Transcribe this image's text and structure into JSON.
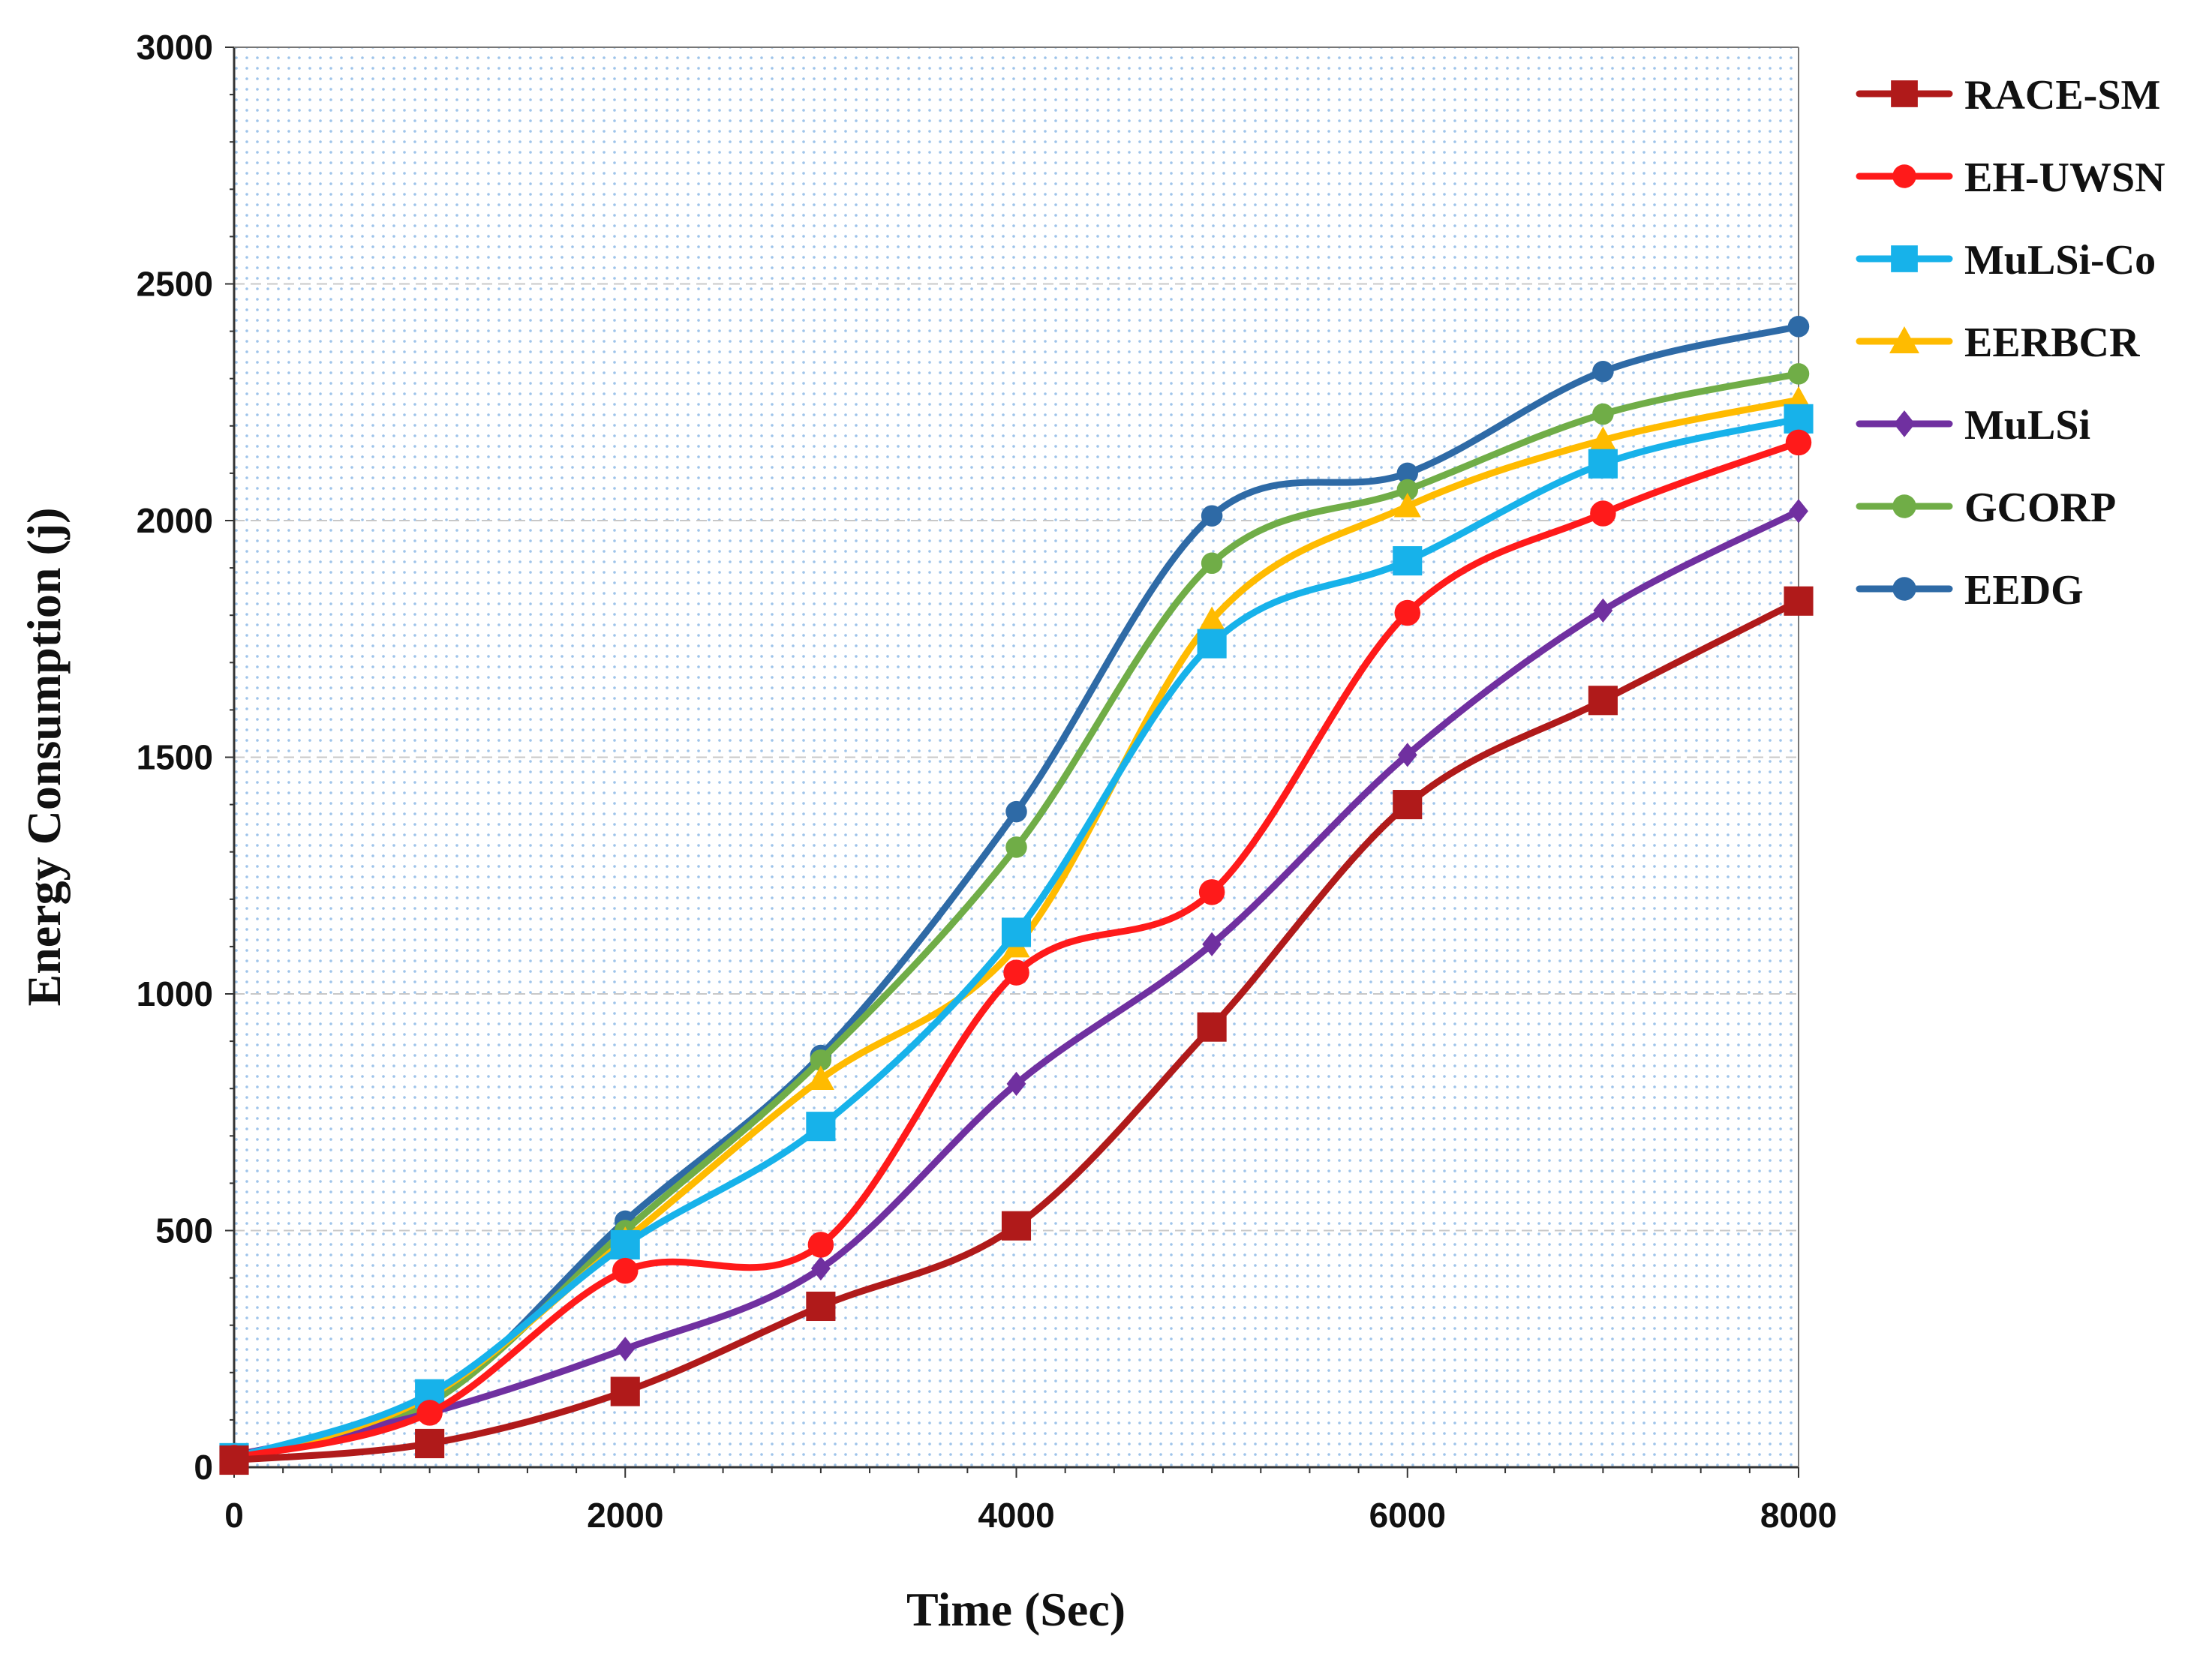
{
  "chart_data": {
    "type": "line",
    "title": "",
    "xlabel": "Time (Sec)",
    "ylabel": "Energy Consumption (j)",
    "xlim": [
      0,
      8000
    ],
    "ylim": [
      0,
      3000
    ],
    "x_ticks": [
      0,
      2000,
      4000,
      6000,
      8000
    ],
    "y_ticks": [
      0,
      500,
      1000,
      1500,
      2000,
      2500,
      3000
    ],
    "x": [
      0,
      1000,
      2000,
      3000,
      4000,
      5000,
      6000,
      7000,
      8000
    ],
    "grid": true,
    "legend_position": "right",
    "series": [
      {
        "name": "RACE-SM",
        "color": "#b01a1a",
        "marker": "square",
        "values": [
          15,
          50,
          160,
          340,
          510,
          930,
          1400,
          1620,
          1830
        ]
      },
      {
        "name": "EH-UWSN",
        "color": "#ff1a1a",
        "marker": "circle",
        "values": [
          20,
          115,
          415,
          470,
          1045,
          1215,
          1805,
          2015,
          2165
        ]
      },
      {
        "name": "MuLSi-Co",
        "color": "#17b2ea",
        "marker": "square",
        "values": [
          20,
          155,
          470,
          720,
          1130,
          1740,
          1915,
          2120,
          2215
        ]
      },
      {
        "name": "EERBCR",
        "color": "#ffbb00",
        "marker": "triangle",
        "values": [
          15,
          150,
          480,
          820,
          1100,
          1790,
          2030,
          2170,
          2255
        ]
      },
      {
        "name": "MuLSi",
        "color": "#7030a0",
        "marker": "diamond",
        "values": [
          25,
          115,
          250,
          420,
          810,
          1105,
          1505,
          1810,
          2020
        ]
      },
      {
        "name": "GCORP",
        "color": "#70ad47",
        "marker": "circle",
        "values": [
          25,
          135,
          500,
          860,
          1310,
          1910,
          2065,
          2225,
          2310
        ]
      },
      {
        "name": "EEDG",
        "color": "#2e6aa6",
        "marker": "circle",
        "values": [
          25,
          135,
          520,
          870,
          1385,
          2010,
          2100,
          2315,
          2410
        ]
      }
    ]
  }
}
